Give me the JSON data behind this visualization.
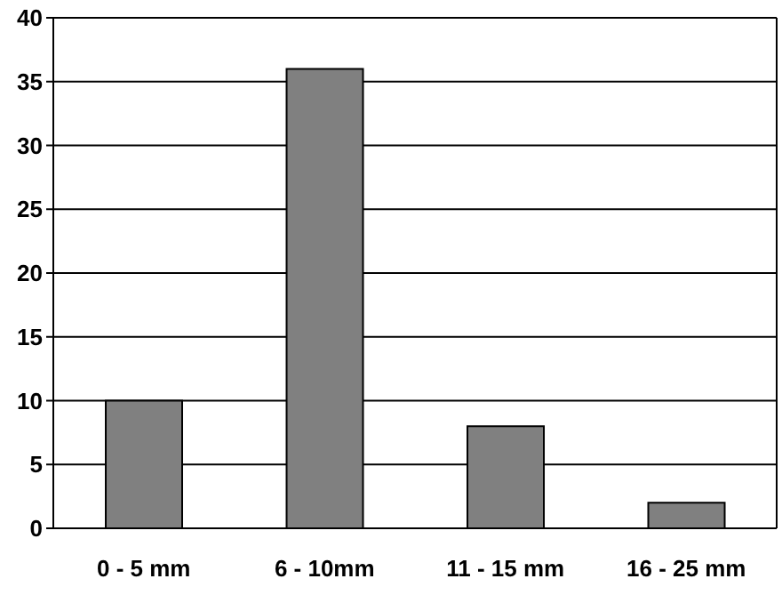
{
  "chart_data": {
    "type": "bar",
    "categories": [
      "0 - 5 mm",
      "6 - 10mm",
      "11 - 15 mm",
      "16 - 25 mm"
    ],
    "values": [
      10,
      36,
      8,
      2
    ],
    "color": "#808080",
    "ylim": [
      0,
      40
    ],
    "yticks": [
      0,
      5,
      10,
      15,
      20,
      25,
      30,
      35,
      40
    ],
    "grid": "y",
    "legend": false
  }
}
